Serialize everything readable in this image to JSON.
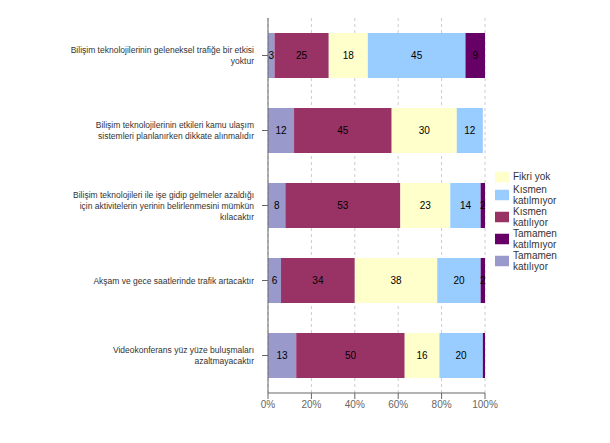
{
  "chart_data": {
    "type": "bar",
    "orientation": "horizontal",
    "stacked": true,
    "categories": [
      "Bilişim teknolojilerinin geleneksel trafiğe bir etkisi\nyoktur",
      "Bilişim teknolojilerinin etkileri kamu ulaşım\nsistemleri planlanırken dikkate alınmalıdır",
      "Bilişim teknolojileri ile işe gidip gelmeler azaldığı\niçin aktivitelerin yerinin belirlenmesini mümkün\nkılacaktır",
      "Akşam ve gece saatlerinde trafik artacaktır",
      "Videokonferans yüz yüze buluşmaları\nazaltmayacaktır"
    ],
    "series": [
      {
        "name": "Tamamen\nkatılıyor",
        "color": "#9999cc",
        "values": [
          3,
          12,
          8,
          6,
          13
        ],
        "value_labels": [
          "3",
          "12",
          "8",
          "6",
          "13"
        ]
      },
      {
        "name": "Kısmen\nkatılıyor",
        "color": "#993366",
        "values": [
          25,
          45,
          53,
          34,
          50
        ],
        "value_labels": [
          "25",
          "45",
          "53",
          "34",
          "50"
        ]
      },
      {
        "name": "Fikri yok",
        "color": "#ffffcc",
        "values": [
          18,
          30,
          23,
          38,
          16
        ],
        "value_labels": [
          "18",
          "30",
          "23",
          "38",
          "16"
        ]
      },
      {
        "name": "Kısmen\nkatılmıyor",
        "color": "#99ccff",
        "values": [
          45,
          12,
          14,
          20,
          20
        ],
        "value_labels": [
          "45",
          "12",
          "14",
          "20",
          "20"
        ]
      },
      {
        "name": "Tamamen\nkatılmıyor",
        "color": "#660066",
        "values": [
          9,
          0,
          2,
          2,
          1
        ],
        "value_labels": [
          "9",
          null,
          "2",
          "2",
          null
        ]
      }
    ],
    "xlim": [
      0,
      100
    ],
    "xticks": [
      {
        "value": 0,
        "label": "0%"
      },
      {
        "value": 20,
        "label": "20%"
      },
      {
        "value": 40,
        "label": "40%"
      },
      {
        "value": 60,
        "label": "60%"
      },
      {
        "value": 80,
        "label": "80%"
      },
      {
        "value": 100,
        "label": "100%"
      }
    ],
    "grid": true,
    "data_labels": true,
    "legend": "right"
  }
}
